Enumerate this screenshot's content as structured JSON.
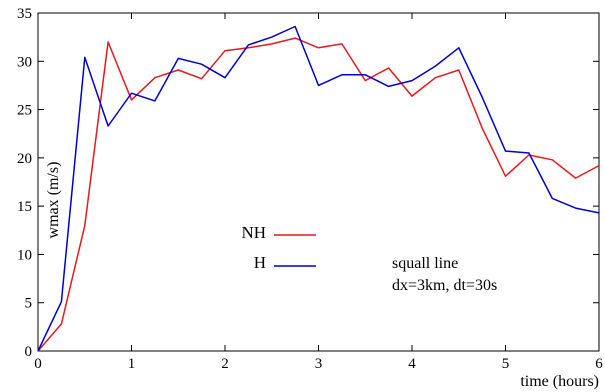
{
  "chart_data": {
    "type": "line",
    "title": "",
    "xlabel": "time (hours)",
    "ylabel": "wmax (m/s)",
    "xlim": [
      0,
      6
    ],
    "ylim": [
      0,
      35
    ],
    "xticks": [
      0,
      1,
      2,
      3,
      4,
      5,
      6
    ],
    "yticks": [
      0,
      5,
      10,
      15,
      20,
      25,
      30,
      35
    ],
    "grid": false,
    "legend_position": "center-left",
    "x": [
      0,
      0.25,
      0.5,
      0.75,
      1.0,
      1.25,
      1.5,
      1.75,
      2.0,
      2.25,
      2.5,
      2.75,
      3.0,
      3.25,
      3.5,
      3.75,
      4.0,
      4.25,
      4.5,
      4.75,
      5.0,
      5.25,
      5.5,
      5.75,
      6.0
    ],
    "series": [
      {
        "name": "NH",
        "color": "#e41a1c",
        "values": [
          0,
          2.8,
          13.0,
          32.0,
          26.0,
          28.3,
          29.1,
          28.2,
          31.1,
          31.4,
          31.8,
          32.4,
          31.4,
          31.8,
          28.0,
          29.3,
          26.4,
          28.3,
          29.1,
          23.1,
          18.1,
          20.3,
          19.8,
          17.9,
          19.2
        ]
      },
      {
        "name": "H",
        "color": "#0000cc",
        "values": [
          0,
          5.1,
          30.4,
          23.3,
          26.7,
          25.9,
          30.3,
          29.7,
          28.3,
          31.7,
          32.5,
          33.6,
          27.5,
          28.6,
          28.6,
          27.4,
          28.0,
          29.5,
          31.4,
          26.3,
          20.7,
          20.5,
          15.8,
          14.8,
          14.3
        ]
      }
    ],
    "annotations": [
      "squall line",
      "dx=3km, dt=30s"
    ]
  }
}
